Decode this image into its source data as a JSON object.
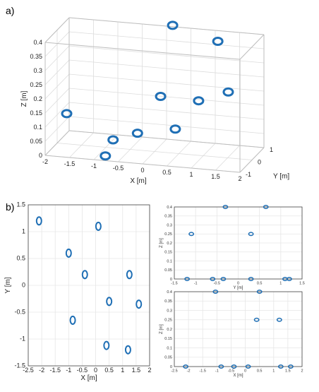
{
  "panels": {
    "a_label": "a)",
    "b_label": "b)"
  },
  "colors": {
    "marker": "#1f6fb5",
    "grid": "#e6e6e6",
    "frame": "#bdbdbd"
  },
  "chart_data": [
    {
      "id": "a",
      "type": "scatter",
      "projection": "3d",
      "title": "",
      "xlabel": "X [m]",
      "ylabel": "Y [m]",
      "zlabel": "Z [m]",
      "xlim": [
        -2,
        2
      ],
      "ylim": [
        -1,
        1
      ],
      "zlim": [
        0,
        0.4
      ],
      "x_ticks": [
        "-2",
        "-1.5",
        "-1",
        "-0.5",
        "0",
        "0.5",
        "1",
        "1.5",
        "2"
      ],
      "y_ticks": [
        "-1",
        "0",
        "1"
      ],
      "z_ticks": [
        "0",
        "0.05",
        "0.1",
        "0.15",
        "0.2",
        "0.25",
        "0.3",
        "0.35",
        "0.4"
      ],
      "grid": true,
      "marker": "open-circle",
      "points": [
        {
          "x": -2.1,
          "y": 1.2,
          "z": 0.05
        },
        {
          "x": 0.1,
          "y": 1.1,
          "z": 0.4
        },
        {
          "x": -1.0,
          "y": 0.6,
          "z": 0.0
        },
        {
          "x": -0.4,
          "y": 0.2,
          "z": 0.05
        },
        {
          "x": 1.25,
          "y": 0.2,
          "z": 0.4
        },
        {
          "x": 0.5,
          "y": -0.3,
          "z": 0.1
        },
        {
          "x": 1.6,
          "y": -0.35,
          "z": 0.25
        },
        {
          "x": -0.85,
          "y": -0.65,
          "z": 0.0
        },
        {
          "x": 0.4,
          "y": -1.12,
          "z": 0.25
        },
        {
          "x": 1.2,
          "y": -1.2,
          "z": 0.25
        }
      ]
    },
    {
      "id": "b_xy",
      "type": "scatter",
      "title": "",
      "xlabel": "X [m]",
      "ylabel": "Y [m]",
      "xlim": [
        -2.5,
        2
      ],
      "ylim": [
        -1.5,
        1.5
      ],
      "x_ticks": [
        "-2.5",
        "-2",
        "-1.5",
        "-1",
        "-0.5",
        "0",
        "0.5",
        "1",
        "1.5",
        "2"
      ],
      "y_ticks": [
        "-1.5",
        "-1",
        "-0.5",
        "0",
        "0.5",
        "1",
        "1.5"
      ],
      "grid": true,
      "marker": "open-circle",
      "points": [
        {
          "x": -2.1,
          "y": 1.2
        },
        {
          "x": 0.1,
          "y": 1.1
        },
        {
          "x": -1.0,
          "y": 0.6
        },
        {
          "x": -0.4,
          "y": 0.2
        },
        {
          "x": 1.25,
          "y": 0.2
        },
        {
          "x": 0.5,
          "y": -0.3
        },
        {
          "x": 1.6,
          "y": -0.35
        },
        {
          "x": -0.85,
          "y": -0.65
        },
        {
          "x": 0.4,
          "y": -1.12
        },
        {
          "x": 1.2,
          "y": -1.2
        }
      ]
    },
    {
      "id": "b_yz",
      "type": "scatter",
      "title": "",
      "xlabel": "Y [m]",
      "ylabel": "Z [m]",
      "xlim": [
        -1.5,
        1.5
      ],
      "ylim": [
        0,
        0.4
      ],
      "x_ticks": [
        "-1.5",
        "-1",
        "-0.5",
        "0",
        "0.5",
        "1",
        "1.5"
      ],
      "y_ticks": [
        "0",
        "0.05",
        "0.1",
        "0.15",
        "0.2",
        "0.25",
        "0.3",
        "0.35",
        "0.4"
      ],
      "grid": true,
      "marker": "open-circle",
      "points": [
        {
          "x": -0.3,
          "y": 0.4
        },
        {
          "x": 0.65,
          "y": 0.4
        },
        {
          "x": -1.1,
          "y": 0.25
        },
        {
          "x": 0.3,
          "y": 0.25
        },
        {
          "x": -1.2,
          "y": 0.0
        },
        {
          "x": -0.6,
          "y": 0.0
        },
        {
          "x": -0.35,
          "y": 0.0
        },
        {
          "x": 0.3,
          "y": 0.0
        },
        {
          "x": 1.1,
          "y": 0.0
        },
        {
          "x": 1.2,
          "y": 0.0
        }
      ]
    },
    {
      "id": "b_xz",
      "type": "scatter",
      "title": "",
      "xlabel": "X [m]",
      "ylabel": "Z [m]",
      "xlim": [
        -2.5,
        2
      ],
      "ylim": [
        0,
        0.4
      ],
      "x_ticks": [
        "-2.5",
        "-2",
        "-1.5",
        "-1",
        "-0.5",
        "0",
        "0.5",
        "1",
        "1.5",
        "2"
      ],
      "y_ticks": [
        "0",
        "0.05",
        "0.1",
        "0.15",
        "0.2",
        "0.25",
        "0.3",
        "0.35",
        "0.4"
      ],
      "grid": true,
      "marker": "open-circle",
      "points": [
        {
          "x": -1.05,
          "y": 0.4
        },
        {
          "x": 0.5,
          "y": 0.4
        },
        {
          "x": 0.4,
          "y": 0.25
        },
        {
          "x": 1.2,
          "y": 0.25
        },
        {
          "x": -2.1,
          "y": 0.0
        },
        {
          "x": -0.85,
          "y": 0.0
        },
        {
          "x": -0.4,
          "y": 0.0
        },
        {
          "x": 0.1,
          "y": 0.0
        },
        {
          "x": 1.25,
          "y": 0.0
        },
        {
          "x": 1.6,
          "y": 0.0
        }
      ]
    }
  ]
}
